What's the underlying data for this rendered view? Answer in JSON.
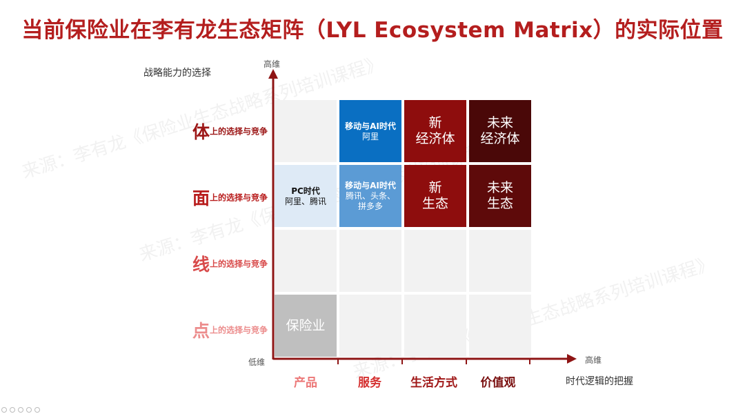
{
  "title": "当前保险业在李有龙生态矩阵（LYL Ecosystem Matrix）的实际位置",
  "y_axis": {
    "title": "战略能力的选择",
    "high": "高维",
    "low": "低维"
  },
  "x_axis": {
    "title": "时代逻辑的把握",
    "high": "高维"
  },
  "rows": [
    {
      "big": "体",
      "sub": "上的选择与竞争",
      "color": "#9c1616"
    },
    {
      "big": "面",
      "sub": "上的选择与竞争",
      "color": "#b81c1c"
    },
    {
      "big": "线",
      "sub": "上的选择与竞争",
      "color": "#d84a4a"
    },
    {
      "big": "点",
      "sub": "上的选择与竞争",
      "color": "#ec8d8d"
    }
  ],
  "columns": [
    {
      "label": "产品",
      "color": "#ec7777"
    },
    {
      "label": "服务",
      "color": "#d43030"
    },
    {
      "label": "生活方式",
      "color": "#a01818"
    },
    {
      "label": "价值观",
      "color": "#7a1010"
    }
  ],
  "cells": {
    "r0c1": {
      "head": "移动与AI时代",
      "body": "阿里",
      "bg": "#0a6fc2",
      "fg": "#ffffff"
    },
    "r0c2": {
      "text": "新\n经济体",
      "bg": "#8e0d0d",
      "fg": "#ffffff"
    },
    "r0c3": {
      "text": "未来\n经济体",
      "bg": "#4a0808",
      "fg": "#ffffff"
    },
    "r1c0": {
      "head": "PC时代",
      "body": "阿里、腾讯",
      "bg": "#deeaf6",
      "fg": "#111111"
    },
    "r1c1": {
      "head": "移动与AI时代",
      "body": "腾讯、头条、\n拼多多",
      "bg": "#5b9bd5",
      "fg": "#ffffff"
    },
    "r1c2": {
      "text": "新\n生态",
      "bg": "#8e0d0d",
      "fg": "#ffffff"
    },
    "r1c3": {
      "text": "未来\n生态",
      "bg": "#5e0a0a",
      "fg": "#ffffff"
    },
    "r3c0": {
      "text": "保险业",
      "bg": "#bfbfbf",
      "fg": "#ffffff"
    }
  },
  "empty_cell_bg": "#f2f2f2",
  "watermark": "来源：李有龙《保险业生态战略系列培训课程》"
}
